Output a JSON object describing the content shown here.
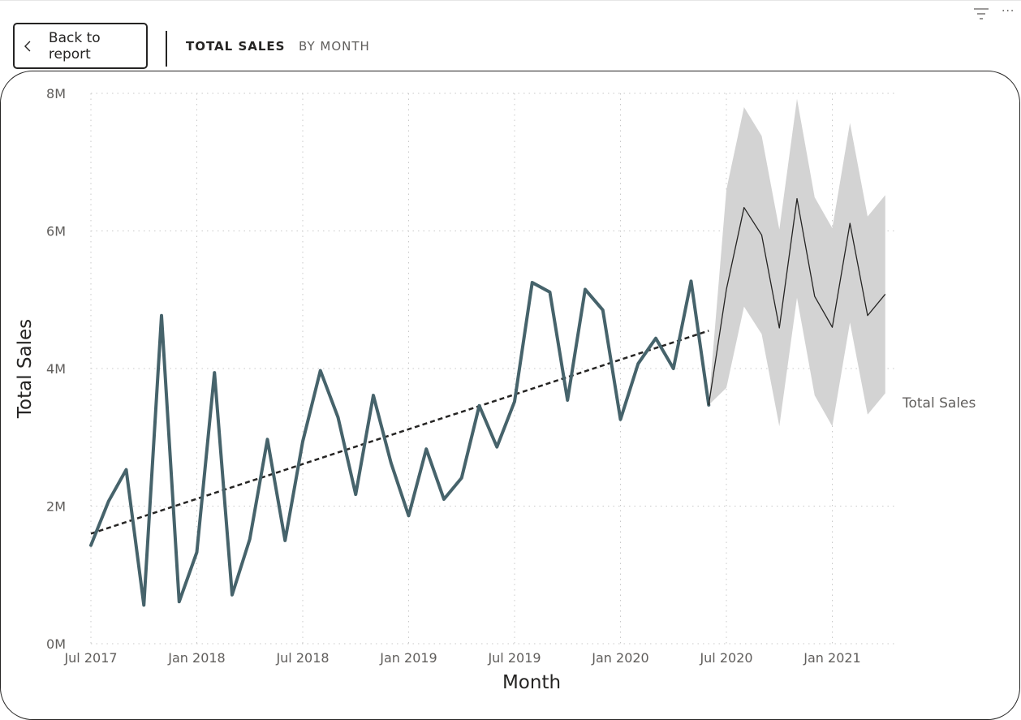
{
  "header": {
    "back_label": "Back to report",
    "breadcrumb": [
      "TOTAL SALES",
      "BY MONTH"
    ],
    "more_label": "···"
  },
  "colors": {
    "actual_line": "#46636b",
    "trend_line": "#252423",
    "forecast_line": "#252423",
    "forecast_band": "#d3d3d3",
    "grid": "#c8c8c8"
  },
  "icons": {
    "back": "chevron-left-icon",
    "filter": "filter-icon",
    "more": "more-options-icon"
  },
  "chart_data": {
    "type": "line",
    "xlabel": "Month",
    "ylabel": "Total Sales",
    "x_ticks": [
      "Jul 2017",
      "Jan 2018",
      "Jul 2018",
      "Jan 2019",
      "Jul 2019",
      "Jan 2020",
      "Jul 2020",
      "Jan 2021"
    ],
    "y_ticks": [
      "0M",
      "2M",
      "4M",
      "6M",
      "8M"
    ],
    "ylim": [
      0,
      8
    ],
    "y_unit": "M",
    "x_start": "2017-07",
    "legend": "Total Sales",
    "grid": true,
    "series": [
      {
        "name": "Total Sales",
        "months": [
          "2017-07",
          "2017-08",
          "2017-09",
          "2017-10",
          "2017-11",
          "2017-12",
          "2018-01",
          "2018-02",
          "2018-03",
          "2018-04",
          "2018-05",
          "2018-06",
          "2018-07",
          "2018-08",
          "2018-09",
          "2018-10",
          "2018-11",
          "2018-12",
          "2019-01",
          "2019-02",
          "2019-03",
          "2019-04",
          "2019-05",
          "2019-06",
          "2019-07",
          "2019-08",
          "2019-09",
          "2019-10",
          "2019-11",
          "2019-12",
          "2020-01",
          "2020-02",
          "2020-03",
          "2020-04",
          "2020-05",
          "2020-06"
        ],
        "values": [
          1.43,
          2.07,
          2.53,
          0.56,
          4.77,
          0.61,
          1.33,
          3.94,
          0.71,
          1.52,
          2.97,
          1.5,
          2.94,
          3.97,
          3.29,
          2.17,
          3.61,
          2.63,
          1.86,
          2.83,
          2.1,
          2.41,
          3.46,
          2.86,
          3.52,
          5.25,
          5.11,
          3.54,
          5.15,
          4.85,
          3.26,
          4.07,
          4.44,
          4.0,
          5.27,
          3.47
        ]
      }
    ],
    "trend": {
      "from_month": "2017-07",
      "to_month": "2020-06",
      "from_value": 1.6,
      "to_value": 4.55
    },
    "forecast": {
      "months": [
        "2020-06",
        "2020-07",
        "2020-08",
        "2020-09",
        "2020-10",
        "2020-11",
        "2020-12",
        "2021-01",
        "2021-02",
        "2021-03",
        "2021-04"
      ],
      "values": [
        3.47,
        5.15,
        6.34,
        5.94,
        4.59,
        6.47,
        5.05,
        4.6,
        6.11,
        4.77,
        5.08
      ],
      "upper": [
        3.5,
        6.6,
        7.8,
        7.38,
        6.02,
        7.92,
        6.49,
        6.04,
        7.57,
        6.21,
        6.52
      ],
      "lower": [
        3.47,
        3.72,
        4.9,
        4.5,
        3.16,
        5.03,
        3.61,
        3.16,
        4.67,
        3.33,
        3.64
      ]
    }
  }
}
